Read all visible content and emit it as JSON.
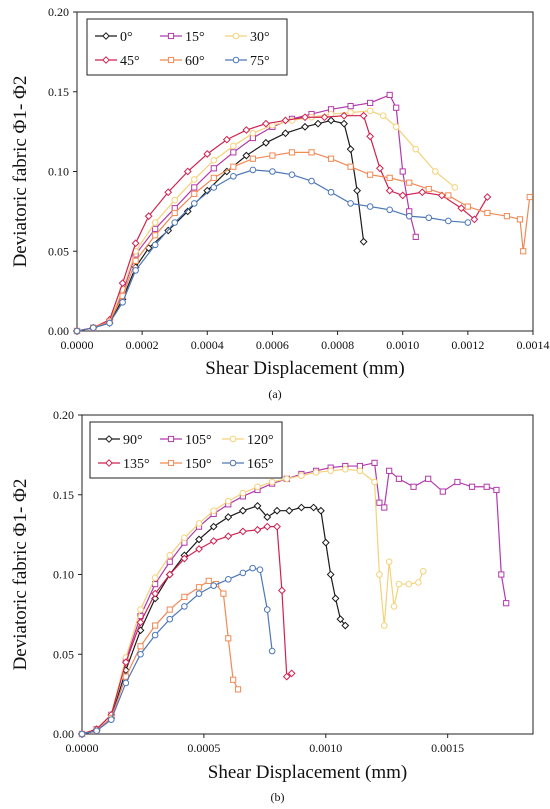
{
  "chart_data": [
    {
      "type": "line",
      "panel_label": "(a)",
      "xlabel": "Shear Displacement (mm)",
      "ylabel": "Deviatoric fabric Φ1- Φ2",
      "xlim": [
        0,
        0.0014
      ],
      "ylim": [
        0,
        0.2
      ],
      "x_ticks": [
        "0.0000",
        "0.0002",
        "0.0004",
        "0.0006",
        "0.0008",
        "0.0010",
        "0.0012",
        "0.0014"
      ],
      "y_ticks": [
        "0.00",
        "0.05",
        "0.10",
        "0.15",
        "0.20"
      ],
      "legend_position": "top-left",
      "grid": false,
      "series": [
        {
          "name": "0°",
          "color": "#1a1a1a",
          "marker": "diamond",
          "x": [
            0,
            5e-05,
            0.0001,
            0.00014,
            0.00018,
            0.00022,
            0.00028,
            0.00034,
            0.0004,
            0.00046,
            0.00052,
            0.00058,
            0.00064,
            0.0007,
            0.00074,
            0.00078,
            0.00082,
            0.00084,
            0.00086,
            0.00088
          ],
          "y": [
            0,
            0.002,
            0.005,
            0.02,
            0.04,
            0.052,
            0.063,
            0.075,
            0.088,
            0.1,
            0.11,
            0.118,
            0.124,
            0.128,
            0.13,
            0.132,
            0.13,
            0.114,
            0.088,
            0.056
          ]
        },
        {
          "name": "15°",
          "color": "#b23aac",
          "marker": "square",
          "x": [
            0,
            5e-05,
            0.0001,
            0.00014,
            0.00018,
            0.00024,
            0.0003,
            0.00036,
            0.00042,
            0.00048,
            0.00054,
            0.0006,
            0.00066,
            0.00072,
            0.00078,
            0.00084,
            0.0009,
            0.00096,
            0.00098,
            0.001,
            0.00102,
            0.00104
          ],
          "y": [
            0,
            0.002,
            0.006,
            0.024,
            0.048,
            0.064,
            0.077,
            0.09,
            0.102,
            0.112,
            0.121,
            0.128,
            0.133,
            0.136,
            0.139,
            0.141,
            0.143,
            0.148,
            0.14,
            0.1,
            0.075,
            0.059
          ]
        },
        {
          "name": "30°",
          "color": "#f4d27a",
          "marker": "circle",
          "x": [
            0,
            5e-05,
            0.0001,
            0.00014,
            0.00018,
            0.00024,
            0.0003,
            0.00036,
            0.00042,
            0.00048,
            0.00054,
            0.0006,
            0.00066,
            0.00072,
            0.00078,
            0.00084,
            0.0009,
            0.00094,
            0.00098,
            0.00104,
            0.0011,
            0.00116
          ],
          "y": [
            0,
            0.002,
            0.006,
            0.026,
            0.05,
            0.068,
            0.082,
            0.095,
            0.107,
            0.116,
            0.124,
            0.129,
            0.132,
            0.134,
            0.136,
            0.137,
            0.138,
            0.135,
            0.128,
            0.114,
            0.1,
            0.09
          ]
        },
        {
          "name": "45°",
          "color": "#d02150",
          "marker": "diamond",
          "x": [
            0,
            5e-05,
            0.0001,
            0.00014,
            0.00018,
            0.00022,
            0.00028,
            0.00034,
            0.0004,
            0.00046,
            0.00052,
            0.00058,
            0.00064,
            0.0007,
            0.00076,
            0.00082,
            0.00088,
            0.0009,
            0.00093,
            0.00096,
            0.001,
            0.00106,
            0.00112,
            0.00118,
            0.00122,
            0.00126
          ],
          "y": [
            0,
            0.002,
            0.007,
            0.03,
            0.055,
            0.072,
            0.087,
            0.1,
            0.111,
            0.12,
            0.126,
            0.13,
            0.132,
            0.134,
            0.134,
            0.135,
            0.135,
            0.122,
            0.102,
            0.088,
            0.085,
            0.087,
            0.085,
            0.077,
            0.07,
            0.084
          ]
        },
        {
          "name": "60°",
          "color": "#f08a55",
          "marker": "square",
          "x": [
            0,
            5e-05,
            0.0001,
            0.00014,
            0.00018,
            0.00024,
            0.0003,
            0.00036,
            0.00042,
            0.00048,
            0.00054,
            0.0006,
            0.00066,
            0.00072,
            0.00078,
            0.00084,
            0.0009,
            0.00096,
            0.00102,
            0.00108,
            0.00114,
            0.0012,
            0.00126,
            0.00132,
            0.00136,
            0.00137,
            0.00139
          ],
          "y": [
            0,
            0.002,
            0.006,
            0.022,
            0.044,
            0.06,
            0.074,
            0.086,
            0.096,
            0.103,
            0.108,
            0.11,
            0.112,
            0.112,
            0.108,
            0.103,
            0.098,
            0.096,
            0.093,
            0.089,
            0.085,
            0.078,
            0.074,
            0.072,
            0.07,
            0.05,
            0.084
          ]
        },
        {
          "name": "75°",
          "color": "#4d77b8",
          "marker": "circle",
          "x": [
            0,
            5e-05,
            0.0001,
            0.00014,
            0.00018,
            0.00024,
            0.0003,
            0.00036,
            0.00042,
            0.00048,
            0.00054,
            0.0006,
            0.00066,
            0.00072,
            0.00078,
            0.00084,
            0.0009,
            0.00096,
            0.00102,
            0.00108,
            0.00114,
            0.0012
          ],
          "y": [
            0,
            0.002,
            0.005,
            0.018,
            0.038,
            0.054,
            0.068,
            0.08,
            0.09,
            0.097,
            0.101,
            0.1,
            0.098,
            0.094,
            0.087,
            0.08,
            0.078,
            0.076,
            0.072,
            0.071,
            0.069,
            0.068
          ]
        }
      ]
    },
    {
      "type": "line",
      "panel_label": "(b)",
      "xlabel": "Shear Displacement (mm)",
      "ylabel": "Deviatoric fabric Φ1- Φ2",
      "xlim": [
        0,
        0.00185
      ],
      "ylim": [
        0,
        0.2
      ],
      "x_ticks": [
        "0.0000",
        "0.0005",
        "0.0010",
        "0.0015"
      ],
      "x_tick_values": [
        0,
        0.0005,
        0.001,
        0.0015
      ],
      "y_ticks": [
        "0.00",
        "0.05",
        "0.10",
        "0.15",
        "0.20"
      ],
      "legend_position": "top-left",
      "grid": false,
      "series": [
        {
          "name": "90°",
          "color": "#1a1a1a",
          "marker": "diamond",
          "x": [
            0,
            6e-05,
            0.00012,
            0.00018,
            0.00024,
            0.0003,
            0.00036,
            0.00042,
            0.00048,
            0.00054,
            0.0006,
            0.00066,
            0.00072,
            0.00076,
            0.0008,
            0.00085,
            0.0009,
            0.00095,
            0.00098,
            0.001,
            0.00102,
            0.00104,
            0.00106,
            0.00108
          ],
          "y": [
            0,
            0.002,
            0.01,
            0.04,
            0.065,
            0.085,
            0.1,
            0.112,
            0.122,
            0.13,
            0.136,
            0.14,
            0.143,
            0.136,
            0.14,
            0.14,
            0.142,
            0.142,
            0.14,
            0.12,
            0.1,
            0.085,
            0.072,
            0.068
          ]
        },
        {
          "name": "105°",
          "color": "#b23aac",
          "marker": "square",
          "x": [
            0,
            6e-05,
            0.00012,
            0.00018,
            0.00024,
            0.0003,
            0.00036,
            0.00042,
            0.00048,
            0.00054,
            0.0006,
            0.00066,
            0.00072,
            0.00078,
            0.00084,
            0.0009,
            0.00096,
            0.00102,
            0.00108,
            0.00114,
            0.0012,
            0.00122,
            0.00124,
            0.00126,
            0.0013,
            0.00136,
            0.00142,
            0.00148,
            0.00154,
            0.0016,
            0.00166,
            0.0017,
            0.00172,
            0.00174
          ],
          "y": [
            0,
            0.003,
            0.012,
            0.046,
            0.074,
            0.094,
            0.108,
            0.12,
            0.13,
            0.138,
            0.144,
            0.149,
            0.153,
            0.157,
            0.16,
            0.163,
            0.165,
            0.167,
            0.168,
            0.168,
            0.17,
            0.145,
            0.142,
            0.165,
            0.16,
            0.155,
            0.16,
            0.152,
            0.158,
            0.155,
            0.155,
            0.153,
            0.1,
            0.082
          ]
        },
        {
          "name": "120°",
          "color": "#f4d27a",
          "marker": "circle",
          "x": [
            0,
            6e-05,
            0.00012,
            0.00018,
            0.00024,
            0.0003,
            0.00036,
            0.00042,
            0.00048,
            0.00054,
            0.0006,
            0.00066,
            0.00072,
            0.00078,
            0.00084,
            0.0009,
            0.00096,
            0.00102,
            0.00108,
            0.00114,
            0.0012,
            0.00122,
            0.00124,
            0.00126,
            0.00128,
            0.0013,
            0.00134,
            0.00138,
            0.0014
          ],
          "y": [
            0,
            0.003,
            0.012,
            0.048,
            0.078,
            0.098,
            0.112,
            0.123,
            0.132,
            0.14,
            0.146,
            0.151,
            0.155,
            0.158,
            0.16,
            0.162,
            0.164,
            0.165,
            0.166,
            0.165,
            0.158,
            0.1,
            0.068,
            0.108,
            0.08,
            0.094,
            0.094,
            0.095,
            0.102
          ]
        },
        {
          "name": "135°",
          "color": "#d02150",
          "marker": "diamond",
          "x": [
            0,
            6e-05,
            0.00012,
            0.00018,
            0.00024,
            0.0003,
            0.00036,
            0.00042,
            0.00048,
            0.00054,
            0.0006,
            0.00066,
            0.00072,
            0.00076,
            0.0008,
            0.00082,
            0.00084,
            0.00086
          ],
          "y": [
            0,
            0.003,
            0.012,
            0.045,
            0.07,
            0.088,
            0.1,
            0.11,
            0.116,
            0.121,
            0.124,
            0.127,
            0.128,
            0.13,
            0.13,
            0.09,
            0.036,
            0.038
          ]
        },
        {
          "name": "150°",
          "color": "#f08a55",
          "marker": "square",
          "x": [
            0,
            6e-05,
            0.00012,
            0.00018,
            0.00024,
            0.0003,
            0.00036,
            0.00042,
            0.00048,
            0.00052,
            0.00055,
            0.00058,
            0.0006,
            0.00062,
            0.00064
          ],
          "y": [
            0,
            0.002,
            0.01,
            0.036,
            0.055,
            0.068,
            0.078,
            0.086,
            0.092,
            0.096,
            0.094,
            0.088,
            0.06,
            0.034,
            0.028
          ]
        },
        {
          "name": "165°",
          "color": "#4d77b8",
          "marker": "circle",
          "x": [
            0,
            6e-05,
            0.00012,
            0.00018,
            0.00024,
            0.0003,
            0.00036,
            0.00042,
            0.00048,
            0.00054,
            0.0006,
            0.00066,
            0.0007,
            0.00073,
            0.00076,
            0.00078
          ],
          "y": [
            0,
            0.002,
            0.009,
            0.032,
            0.05,
            0.062,
            0.072,
            0.08,
            0.088,
            0.093,
            0.097,
            0.101,
            0.104,
            0.103,
            0.078,
            0.052
          ]
        }
      ]
    }
  ]
}
